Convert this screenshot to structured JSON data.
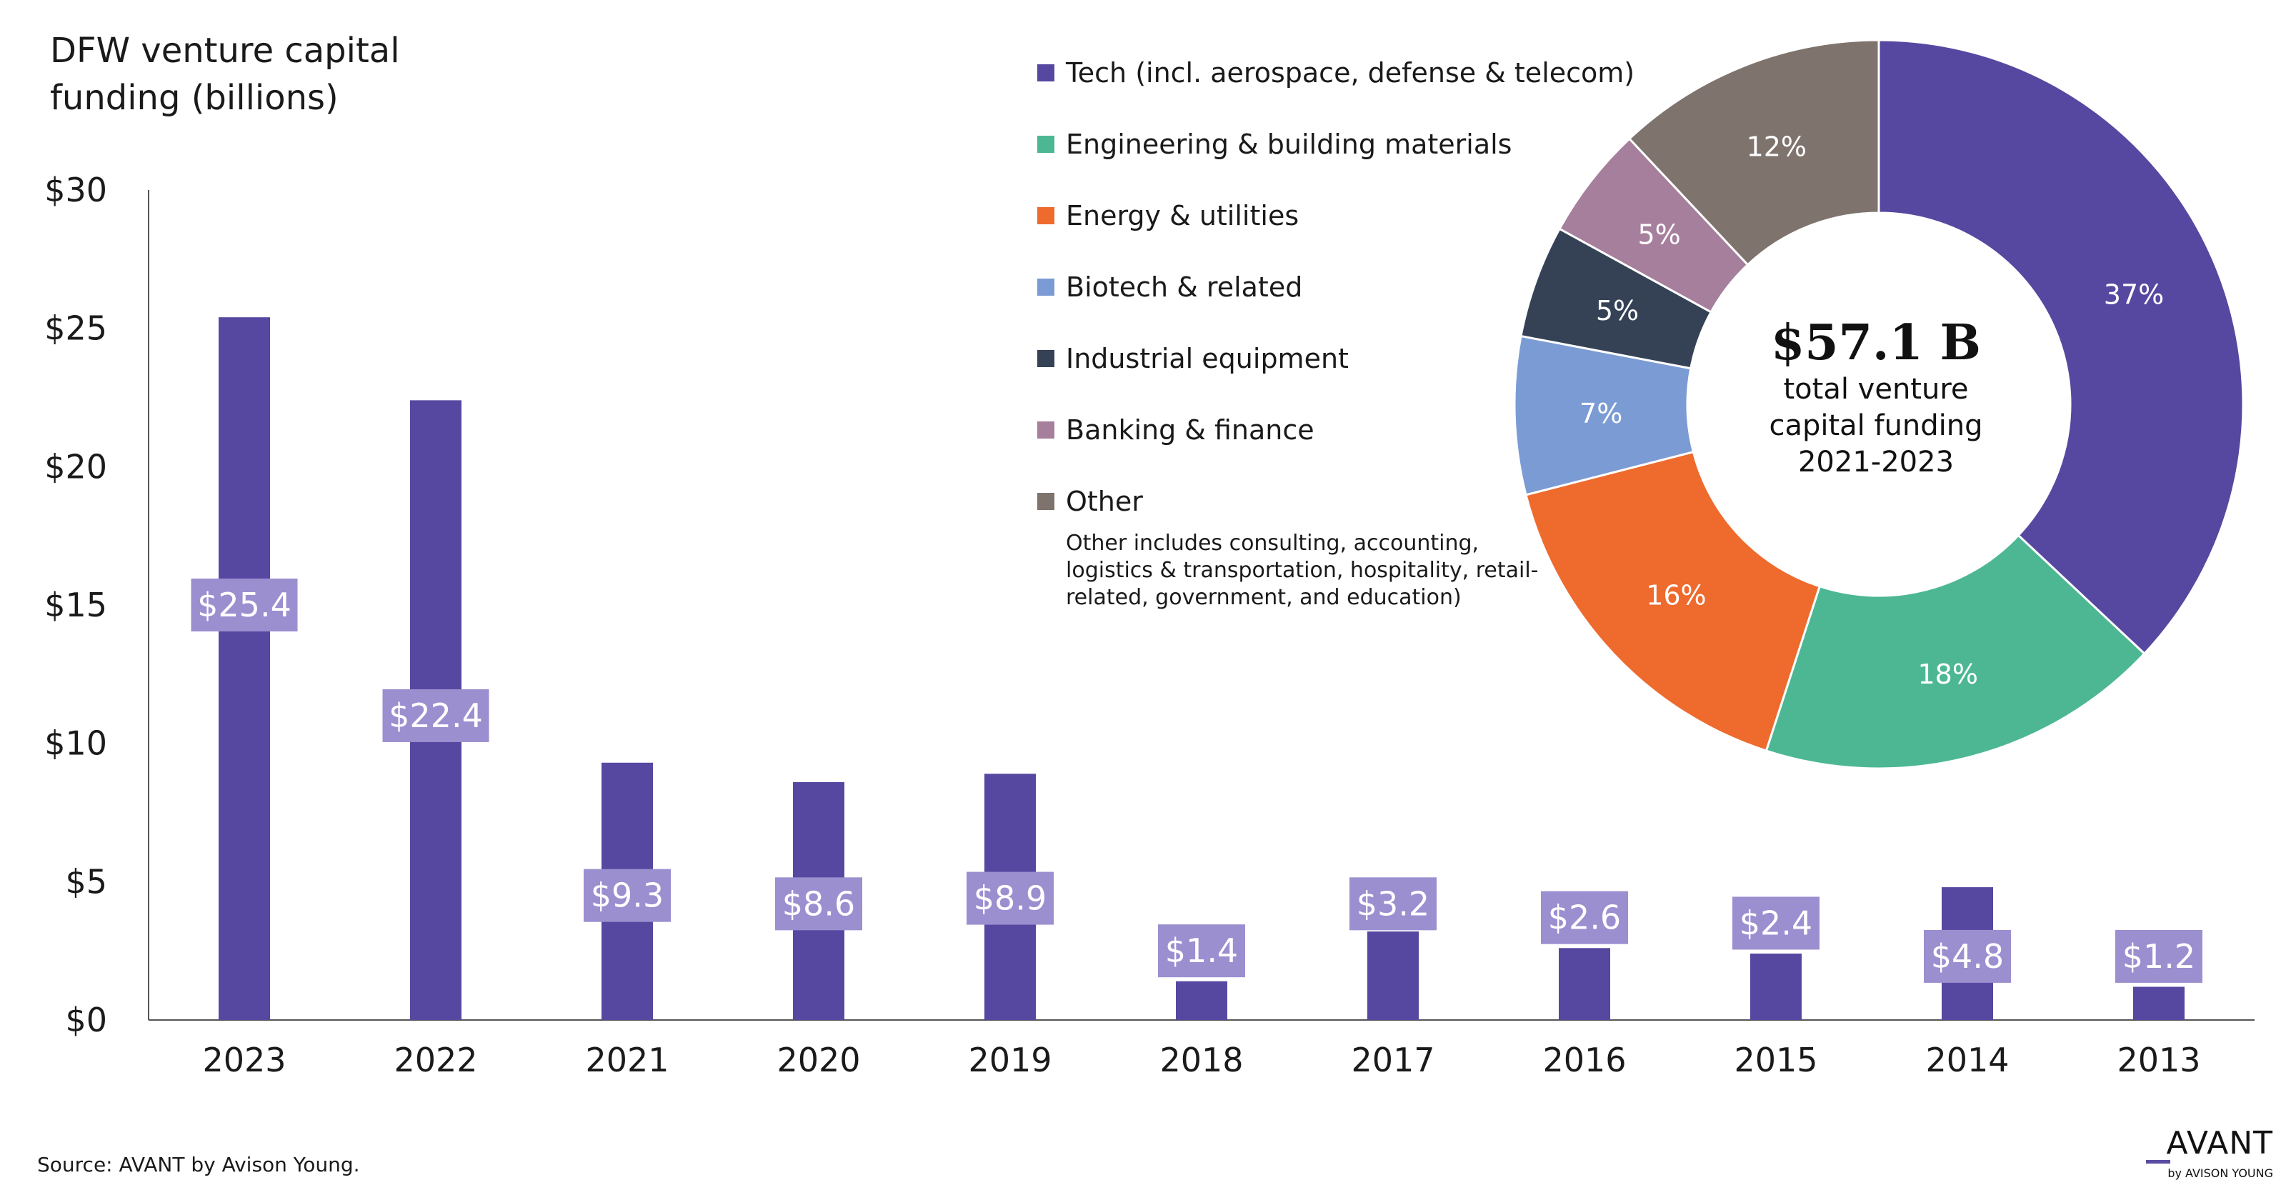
{
  "title": "DFW venture capital\nfunding (billions)",
  "source": "Source: AVANT by Avison Young.",
  "logo": {
    "main": "AVANT",
    "sub": "by AVISON YOUNG"
  },
  "colors": {
    "bar": "#5648a0",
    "label_bg": "#9b8fd0",
    "label_text": "#ffffff",
    "axis": "#555555",
    "text": "#1a1a1a"
  },
  "chart_data": [
    {
      "type": "bar",
      "title": "DFW venture capital funding (billions)",
      "xlabel": "",
      "ylabel": "",
      "categories": [
        "2023",
        "2022",
        "2021",
        "2020",
        "2019",
        "2018",
        "2017",
        "2016",
        "2015",
        "2014",
        "2013"
      ],
      "values": [
        25.4,
        22.4,
        9.3,
        8.6,
        8.9,
        1.4,
        3.2,
        2.6,
        2.4,
        4.8,
        1.2
      ],
      "data_labels": [
        "$25.4",
        "$22.4",
        "$9.3",
        "$8.6",
        "$8.9",
        "$1.4",
        "$3.2",
        "$2.6",
        "$2.4",
        "$4.8",
        "$1.2"
      ],
      "label_values": [
        15.0,
        11.0,
        4.5,
        4.2,
        4.4,
        2.5,
        4.2,
        3.7,
        3.5,
        2.3,
        2.3
      ],
      "ylim": [
        0,
        30
      ],
      "yticks": [
        0,
        5,
        10,
        15,
        20,
        25,
        30
      ],
      "ytick_labels": [
        "$0",
        "$5",
        "$10",
        "$15",
        "$20",
        "$25",
        "$30"
      ],
      "grid": false
    },
    {
      "type": "pie",
      "subtype": "donut",
      "title": "total venture capital funding 2021-2023",
      "total_label": "$57.1 B",
      "center_caption": "total venture\ncapital funding\n2021-2023",
      "legend_position": "left",
      "slices": [
        {
          "label": "Tech (incl. aerospace, defense & telecom)",
          "value": 37,
          "display": "37%",
          "color": "#5648a0"
        },
        {
          "label": "Engineering & building materials",
          "value": 18,
          "display": "18%",
          "color": "#4db794"
        },
        {
          "label": "Energy & utilities",
          "value": 16,
          "display": "16%",
          "color": "#ee6a2d"
        },
        {
          "label": "Biotech & related",
          "value": 7,
          "display": "7%",
          "color": "#7b9bd4"
        },
        {
          "label": "Industrial equipment",
          "value": 5,
          "display": "5%",
          "color": "#354256"
        },
        {
          "label": "Banking & finance",
          "value": 5,
          "display": "5%",
          "color": "#a67f9d"
        },
        {
          "label": "Other",
          "value": 12,
          "display": "12%",
          "color": "#7e736d"
        }
      ],
      "legend_note": "Other includes consulting, accounting, logistics & transportation, hospitality, retail-related, government, and education)"
    }
  ]
}
